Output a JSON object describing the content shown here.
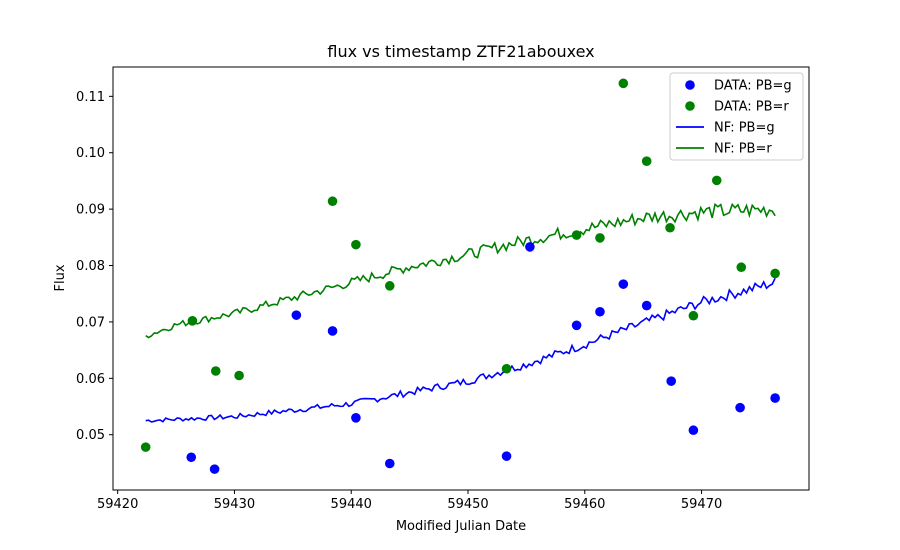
{
  "chart_data": {
    "type": "scatter",
    "title": "flux vs timestamp ZTF21abouxex",
    "xlabel": "Modified Julian Date",
    "ylabel": "Flux",
    "xlim": [
      59419.6,
      59479.2
    ],
    "ylim": [
      0.0402,
      0.1152
    ],
    "xticks": [
      59420,
      59430,
      59440,
      59450,
      59460,
      59470
    ],
    "yticks": [
      0.05,
      0.06,
      0.07,
      0.08,
      0.09,
      0.1,
      0.11
    ],
    "ytick_labels": [
      "0.05",
      "0.06",
      "0.07",
      "0.08",
      "0.09",
      "0.10",
      "0.11"
    ],
    "grid": false,
    "legend_position": "top-right",
    "colors": {
      "g": "#0000ff",
      "r": "#008000"
    },
    "series": [
      {
        "name": "DATA: PB=g",
        "kind": "scatter",
        "color": "#0000ff",
        "points": [
          [
            59426.3,
            0.046
          ],
          [
            59428.3,
            0.0439
          ],
          [
            59435.3,
            0.0712
          ],
          [
            59438.4,
            0.0684
          ],
          [
            59440.4,
            0.053
          ],
          [
            59443.3,
            0.0449
          ],
          [
            59453.3,
            0.0462
          ],
          [
            59455.3,
            0.0833
          ],
          [
            59459.3,
            0.0694
          ],
          [
            59461.3,
            0.0718
          ],
          [
            59463.3,
            0.0767
          ],
          [
            59465.3,
            0.0729
          ],
          [
            59467.4,
            0.0595
          ],
          [
            59469.3,
            0.0508
          ],
          [
            59473.3,
            0.0548
          ],
          [
            59476.3,
            0.0565
          ]
        ]
      },
      {
        "name": "DATA: PB=r",
        "kind": "scatter",
        "color": "#008000",
        "points": [
          [
            59422.4,
            0.0478
          ],
          [
            59426.4,
            0.0702
          ],
          [
            59428.4,
            0.0613
          ],
          [
            59430.4,
            0.0605
          ],
          [
            59438.4,
            0.0914
          ],
          [
            59440.4,
            0.0837
          ],
          [
            59443.3,
            0.0764
          ],
          [
            59453.3,
            0.0617
          ],
          [
            59459.3,
            0.0854
          ],
          [
            59461.3,
            0.0849
          ],
          [
            59463.3,
            0.1123
          ],
          [
            59465.3,
            0.0985
          ],
          [
            59467.3,
            0.0867
          ],
          [
            59469.3,
            0.0711
          ],
          [
            59471.3,
            0.0951
          ],
          [
            59473.4,
            0.0797
          ],
          [
            59476.3,
            0.0786
          ]
        ]
      },
      {
        "name": "NF: PB=g",
        "kind": "line",
        "color": "#0000ff",
        "x_range": [
          59422.4,
          59476.3
        ],
        "trend": [
          [
            59422.4,
            0.0525
          ],
          [
            59430,
            0.0532
          ],
          [
            59440,
            0.0555
          ],
          [
            59450,
            0.0595
          ],
          [
            59455,
            0.0625
          ],
          [
            59460,
            0.066
          ],
          [
            59465,
            0.0698
          ],
          [
            59470,
            0.0735
          ],
          [
            59476.3,
            0.077
          ]
        ]
      },
      {
        "name": "NF: PB=r",
        "kind": "line",
        "color": "#008000",
        "x_range": [
          59422.4,
          59476.3
        ],
        "trend": [
          [
            59422.4,
            0.0675
          ],
          [
            59425,
            0.0695
          ],
          [
            59430,
            0.0715
          ],
          [
            59440,
            0.077
          ],
          [
            59445,
            0.0798
          ],
          [
            59450,
            0.082
          ],
          [
            59455,
            0.0845
          ],
          [
            59460,
            0.0865
          ],
          [
            59465,
            0.0885
          ],
          [
            59470,
            0.0895
          ],
          [
            59476.3,
            0.09
          ]
        ]
      }
    ]
  }
}
